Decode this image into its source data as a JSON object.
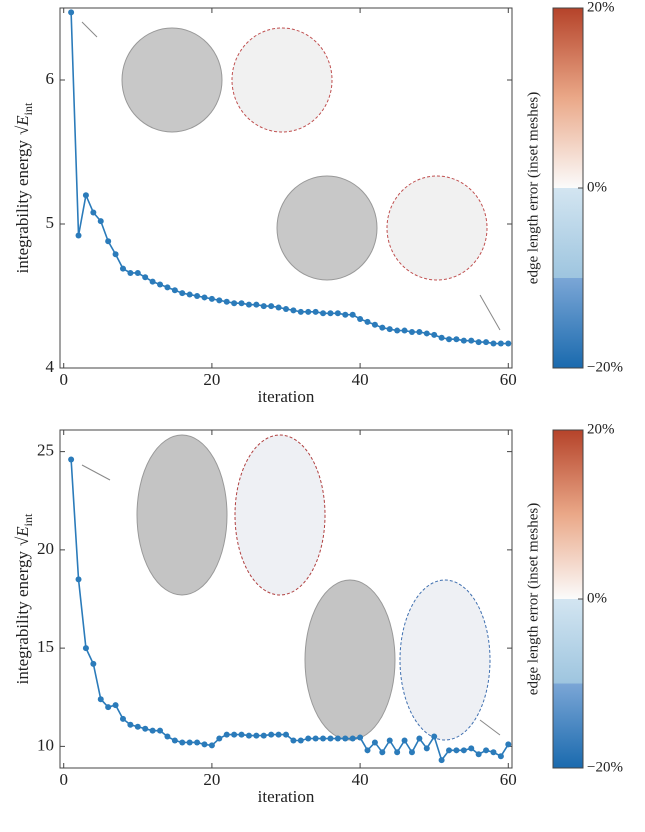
{
  "chart_data": [
    {
      "type": "line",
      "xlabel": "iteration",
      "ylabel": "integrability energy",
      "ylabel_math": {
        "base": "√E",
        "sub": "int"
      },
      "x": [
        1,
        2,
        3,
        4,
        5,
        6,
        7,
        8,
        9,
        10,
        11,
        12,
        13,
        14,
        15,
        16,
        17,
        18,
        19,
        20,
        21,
        22,
        23,
        24,
        25,
        26,
        27,
        28,
        29,
        30,
        31,
        32,
        33,
        34,
        35,
        36,
        37,
        38,
        39,
        40,
        41,
        42,
        43,
        44,
        45,
        46,
        47,
        48,
        49,
        50,
        51,
        52,
        53,
        54,
        55,
        56,
        57,
        58,
        59,
        60
      ],
      "values": [
        6.47,
        4.92,
        5.2,
        5.08,
        5.02,
        4.88,
        4.79,
        4.69,
        4.66,
        4.66,
        4.63,
        4.6,
        4.58,
        4.56,
        4.54,
        4.52,
        4.51,
        4.5,
        4.49,
        4.48,
        4.47,
        4.46,
        4.45,
        4.45,
        4.44,
        4.44,
        4.43,
        4.43,
        4.42,
        4.41,
        4.4,
        4.39,
        4.39,
        4.39,
        4.38,
        4.38,
        4.38,
        4.37,
        4.37,
        4.34,
        4.32,
        4.3,
        4.28,
        4.27,
        4.26,
        4.26,
        4.25,
        4.25,
        4.24,
        4.23,
        4.21,
        4.2,
        4.2,
        4.19,
        4.19,
        4.18,
        4.18,
        4.17,
        4.17,
        4.17
      ],
      "color": "#2b7bba",
      "xlim": [
        -0.5,
        60.5
      ],
      "xticks": [
        0,
        20,
        40,
        60
      ],
      "ylim": [
        4,
        6.5
      ],
      "yticks": [
        4,
        5,
        6
      ],
      "colorbar": {
        "label": "edge length error (inset meshes)",
        "lim": [
          -20,
          20
        ],
        "ticks": [
          {
            "value": 20,
            "label": "20%"
          },
          {
            "value": 0,
            "label": "0%"
          },
          {
            "value": -20,
            "label": "−20%"
          }
        ]
      }
    },
    {
      "type": "line",
      "xlabel": "iteration",
      "ylabel": "integrability energy",
      "ylabel_math": {
        "base": "√E",
        "sub": "int"
      },
      "x": [
        1,
        2,
        3,
        4,
        5,
        6,
        7,
        8,
        9,
        10,
        11,
        12,
        13,
        14,
        15,
        16,
        17,
        18,
        19,
        20,
        21,
        22,
        23,
        24,
        25,
        26,
        27,
        28,
        29,
        30,
        31,
        32,
        33,
        34,
        35,
        36,
        37,
        38,
        39,
        40,
        41,
        42,
        43,
        44,
        45,
        46,
        47,
        48,
        49,
        50,
        51,
        52,
        53,
        54,
        55,
        56,
        57,
        58,
        59,
        60
      ],
      "values": [
        24.6,
        18.5,
        15,
        14.2,
        12.4,
        12,
        12.1,
        11.4,
        11.1,
        11,
        10.9,
        10.8,
        10.8,
        10.5,
        10.3,
        10.2,
        10.2,
        10.2,
        10.1,
        10.05,
        10.4,
        10.6,
        10.6,
        10.6,
        10.55,
        10.55,
        10.55,
        10.6,
        10.6,
        10.6,
        10.3,
        10.3,
        10.4,
        10.4,
        10.4,
        10.4,
        10.4,
        10.4,
        10.4,
        10.45,
        9.8,
        10.2,
        9.7,
        10.3,
        9.7,
        10.3,
        9.7,
        10.4,
        9.9,
        10.5,
        9.3,
        9.8,
        9.8,
        9.8,
        9.9,
        9.6,
        9.8,
        9.7,
        9.5,
        10.1
      ],
      "color": "#2b7bba",
      "xlim": [
        -0.5,
        60.5
      ],
      "xticks": [
        0,
        20,
        40,
        60
      ],
      "ylim": [
        8.9,
        26.1
      ],
      "yticks": [
        10,
        15,
        20,
        25
      ],
      "colorbar": {
        "label": "edge length error (inset meshes)",
        "lim": [
          -20,
          20
        ],
        "ticks": [
          {
            "value": 20,
            "label": "20%"
          },
          {
            "value": 0,
            "label": "0%"
          },
          {
            "value": -20,
            "label": "−20%"
          }
        ]
      }
    }
  ]
}
